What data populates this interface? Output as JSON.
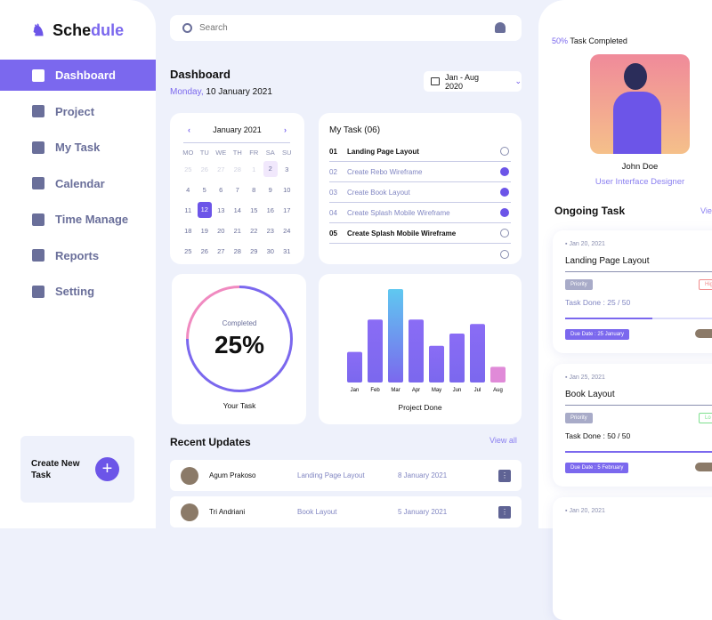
{
  "app": {
    "logo_a": "Sche",
    "logo_b": "dule"
  },
  "sidebar": {
    "items": [
      {
        "label": "Dashboard",
        "icon": "grid-icon"
      },
      {
        "label": "Project",
        "icon": "project-icon"
      },
      {
        "label": "My Task",
        "icon": "user-icon"
      },
      {
        "label": "Calendar",
        "icon": "calendar-icon"
      },
      {
        "label": "Time Manage",
        "icon": "clock-icon"
      },
      {
        "label": "Reports",
        "icon": "chart-icon"
      },
      {
        "label": "Setting",
        "icon": "gear-icon"
      }
    ],
    "create_label": "Create New Task"
  },
  "search": {
    "placeholder": "Search"
  },
  "header": {
    "title": "Dashboard",
    "day": "Monday,",
    "date": "10 January 2021",
    "range": "Jan - Aug 2020"
  },
  "calendar": {
    "month": "January 2021",
    "dow": [
      "MO",
      "TU",
      "WE",
      "TH",
      "FR",
      "SA",
      "SU"
    ],
    "days": [
      [
        "25",
        "dim"
      ],
      [
        "26",
        "dim"
      ],
      [
        "27",
        "dim"
      ],
      [
        "28",
        "dim"
      ],
      [
        "1",
        "dim"
      ],
      [
        "2",
        "hl"
      ],
      [
        "3",
        ""
      ],
      [
        "4",
        ""
      ],
      [
        "5",
        ""
      ],
      [
        "6",
        ""
      ],
      [
        "7",
        ""
      ],
      [
        "8",
        ""
      ],
      [
        "9",
        ""
      ],
      [
        "10",
        ""
      ],
      [
        "11",
        ""
      ],
      [
        "12",
        "sel"
      ],
      [
        "13",
        ""
      ],
      [
        "14",
        ""
      ],
      [
        "15",
        ""
      ],
      [
        "16",
        ""
      ],
      [
        "17",
        ""
      ],
      [
        "18",
        ""
      ],
      [
        "19",
        ""
      ],
      [
        "20",
        ""
      ],
      [
        "21",
        ""
      ],
      [
        "22",
        ""
      ],
      [
        "23",
        ""
      ],
      [
        "24",
        ""
      ],
      [
        "25",
        ""
      ],
      [
        "26",
        ""
      ],
      [
        "27",
        ""
      ],
      [
        "28",
        ""
      ],
      [
        "29",
        ""
      ],
      [
        "30",
        ""
      ],
      [
        "31",
        ""
      ]
    ]
  },
  "my_task": {
    "title": "My Task (06)",
    "items": [
      {
        "num": "01",
        "label": "Landing Page Layout",
        "done": false
      },
      {
        "num": "02",
        "label": "Create Rebo Wireframe",
        "done": true
      },
      {
        "num": "03",
        "label": "Create Book Layout",
        "done": true
      },
      {
        "num": "04",
        "label": "Create Splash Mobile Wireframe",
        "done": true
      },
      {
        "num": "05",
        "label": "Create Splash Mobile Wireframe",
        "done": false
      },
      {
        "num": "",
        "label": "",
        "done": false
      }
    ]
  },
  "your_task": {
    "label": "Completed",
    "value": "25%",
    "caption": "Your Task",
    "progress": 25
  },
  "chart_data": {
    "type": "bar",
    "categories": [
      "Jan",
      "Feb",
      "Mar",
      "Apr",
      "May",
      "Jun",
      "Jul",
      "Aug"
    ],
    "values": [
      35,
      72,
      107,
      72,
      42,
      56,
      67,
      18
    ],
    "title": "Project Done"
  },
  "recent": {
    "title": "Recent Updates",
    "view_all": "View all",
    "rows": [
      {
        "name": "Agum Prakoso",
        "task": "Landing Page Layout",
        "date": "8 January 2021"
      },
      {
        "name": "Tri Andriani",
        "task": "Book Layout",
        "date": "5 January 2021"
      }
    ]
  },
  "profile": {
    "percent": "50%",
    "completed": "Task Completed",
    "name": "John Doe",
    "role": "User Interface Designer"
  },
  "ongoing": {
    "title": "Ongoing Task",
    "view": "Vie",
    "cards": [
      {
        "date": "Jan 20, 2021",
        "title": "Landing Page Layout",
        "priority": "Priority",
        "tag": "Hig",
        "tag_color": "#f08a8a",
        "done": "Task Done : 25 / 50",
        "progress": 50,
        "due": "Due Date : 25 January"
      },
      {
        "date": "Jan 25, 2021",
        "title": "Book Layout",
        "priority": "Priority",
        "tag": "Lo",
        "tag_color": "#7ee08e",
        "done": "Task Done : 50 / 50",
        "progress": 100,
        "due": "Due Date : 5 February"
      },
      {
        "date": "Jan 20, 2021"
      }
    ]
  }
}
